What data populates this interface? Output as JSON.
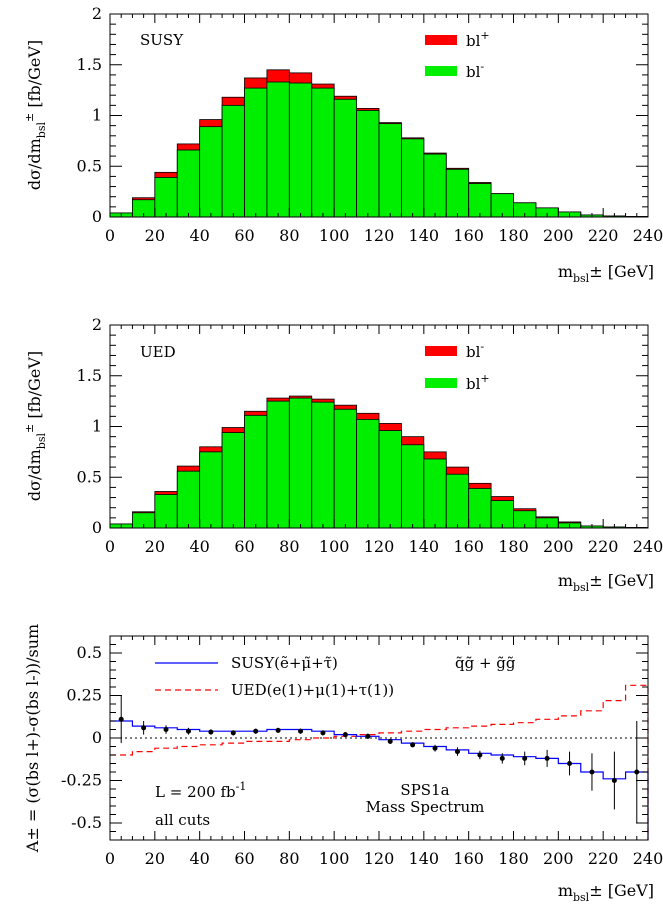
{
  "chart_data": [
    {
      "type": "bar",
      "subtype": "stacked-histogram",
      "panel_label": "SUSY",
      "x_bin_edges": [
        0,
        10,
        20,
        30,
        40,
        50,
        60,
        70,
        80,
        90,
        100,
        110,
        120,
        130,
        140,
        150,
        160,
        170,
        180,
        190,
        200,
        210,
        220,
        230,
        240
      ],
      "xlim": [
        0,
        240
      ],
      "ylim": [
        0,
        2
      ],
      "x_ticks": [
        "0",
        "20",
        "40",
        "60",
        "80",
        "100",
        "120",
        "140",
        "160",
        "180",
        "200",
        "220",
        "240"
      ],
      "y_ticks": [
        "0",
        "0.5",
        "1",
        "1.5",
        "2"
      ],
      "ylabel_main": "dσ/dm",
      "ylabel_sub": "bsl",
      "ylabel_sup": "±",
      "ylabel_unit": " [fb/GeV]",
      "xlabel_main": "m",
      "xlabel_sub": "bsl",
      "xlabel_rest": "± [GeV]",
      "series": [
        {
          "name_main": "bl",
          "name_sup": "+",
          "color": "#ff0000",
          "values": [
            0.04,
            0.19,
            0.44,
            0.72,
            0.96,
            1.18,
            1.37,
            1.45,
            1.42,
            1.31,
            1.19,
            1.07,
            0.93,
            0.78,
            0.63,
            0.48,
            0.34,
            0.23,
            0.14,
            0.09,
            0.05,
            0.02,
            0.01,
            0.005
          ]
        },
        {
          "name_main": "bl",
          "name_sup": "-",
          "color": "#00ee00",
          "values": [
            0.04,
            0.17,
            0.39,
            0.66,
            0.89,
            1.1,
            1.27,
            1.33,
            1.32,
            1.27,
            1.16,
            1.05,
            0.92,
            0.77,
            0.62,
            0.47,
            0.33,
            0.23,
            0.14,
            0.09,
            0.05,
            0.02,
            0.01,
            0.005
          ]
        }
      ]
    },
    {
      "type": "bar",
      "subtype": "stacked-histogram",
      "panel_label": "UED",
      "x_bin_edges": [
        0,
        10,
        20,
        30,
        40,
        50,
        60,
        70,
        80,
        90,
        100,
        110,
        120,
        130,
        140,
        150,
        160,
        170,
        180,
        190,
        200,
        210,
        220,
        230,
        240
      ],
      "xlim": [
        0,
        240
      ],
      "ylim": [
        0,
        2
      ],
      "x_ticks": [
        "0",
        "20",
        "40",
        "60",
        "80",
        "100",
        "120",
        "140",
        "160",
        "180",
        "200",
        "220",
        "240"
      ],
      "y_ticks": [
        "0",
        "0.5",
        "1",
        "1.5",
        "2"
      ],
      "ylabel_main": "dσ/dm",
      "ylabel_sub": "bsl",
      "ylabel_sup": "±",
      "ylabel_unit": " [fb/GeV]",
      "xlabel_main": "m",
      "xlabel_sub": "bsl",
      "xlabel_rest": "± [GeV]",
      "series": [
        {
          "name_main": "bl",
          "name_sup": "-",
          "color": "#ff0000",
          "values": [
            0.04,
            0.16,
            0.36,
            0.61,
            0.8,
            0.99,
            1.15,
            1.28,
            1.3,
            1.27,
            1.21,
            1.13,
            1.03,
            0.9,
            0.75,
            0.6,
            0.44,
            0.31,
            0.19,
            0.11,
            0.06,
            0.02,
            0.01,
            0.005
          ]
        },
        {
          "name_main": "bl",
          "name_sup": "+",
          "color": "#00ee00",
          "values": [
            0.04,
            0.15,
            0.33,
            0.56,
            0.75,
            0.94,
            1.11,
            1.25,
            1.28,
            1.24,
            1.17,
            1.07,
            0.96,
            0.82,
            0.68,
            0.53,
            0.39,
            0.27,
            0.17,
            0.1,
            0.05,
            0.02,
            0.01,
            0.005
          ]
        }
      ]
    },
    {
      "type": "line",
      "subtype": "step-with-errorbars",
      "x_bin_edges": [
        0,
        10,
        20,
        30,
        40,
        50,
        60,
        70,
        80,
        90,
        100,
        110,
        120,
        130,
        140,
        150,
        160,
        170,
        180,
        190,
        200,
        210,
        220,
        230,
        240
      ],
      "xlim": [
        0,
        240
      ],
      "ylim": [
        -0.6,
        0.6
      ],
      "x_ticks": [
        "0",
        "20",
        "40",
        "60",
        "80",
        "100",
        "120",
        "140",
        "160",
        "180",
        "200",
        "220",
        "240"
      ],
      "y_ticks": [
        "-0.5",
        "-0.25",
        "0",
        "0.25",
        "0.5"
      ],
      "ylabel": "A± = (σ(bs l+)-σ(bs l-))/sum",
      "xlabel_main": "m",
      "xlabel_sub": "bsl",
      "xlabel_rest": "± [GeV]",
      "zero_line": "dotted",
      "annotations": {
        "process": "q̃g̃ + g̃g̃",
        "lumi_main": "L = 200 fb",
        "lumi_sup": "-1",
        "cuts": "all cuts",
        "spectrum_line1": "SPS1a",
        "spectrum_line2": "Mass Spectrum"
      },
      "series": [
        {
          "name": "SUSY(ẽ+μ̃+τ̃)",
          "color": "#0000ff",
          "style": "solid",
          "values": [
            0.1,
            0.07,
            0.06,
            0.05,
            0.04,
            0.04,
            0.04,
            0.05,
            0.05,
            0.04,
            0.02,
            0.01,
            -0.01,
            -0.03,
            -0.05,
            -0.07,
            -0.09,
            -0.1,
            -0.11,
            -0.12,
            -0.15,
            -0.2,
            -0.24,
            -0.2
          ]
        },
        {
          "name": "UED(e(1)+μ(1)+τ(1))",
          "color": "#ff0000",
          "style": "dashed",
          "values": [
            -0.1,
            -0.08,
            -0.06,
            -0.05,
            -0.04,
            -0.03,
            -0.02,
            -0.02,
            -0.01,
            0.0,
            0.01,
            0.02,
            0.03,
            0.04,
            0.05,
            0.06,
            0.07,
            0.08,
            0.09,
            0.11,
            0.13,
            0.16,
            0.22,
            0.31
          ]
        },
        {
          "name": "data",
          "color": "#000000",
          "style": "points",
          "x": [
            5,
            15,
            25,
            35,
            45,
            55,
            65,
            75,
            85,
            95,
            105,
            115,
            125,
            135,
            145,
            155,
            165,
            175,
            185,
            195,
            205,
            215,
            225,
            235
          ],
          "values": [
            0.11,
            0.06,
            0.05,
            0.04,
            0.035,
            0.03,
            0.04,
            0.045,
            0.04,
            0.03,
            0.02,
            0.01,
            -0.02,
            -0.04,
            -0.06,
            -0.08,
            -0.1,
            -0.12,
            -0.12,
            -0.12,
            -0.15,
            -0.2,
            -0.25,
            -0.2
          ],
          "errors": [
            0.14,
            0.04,
            0.025,
            0.02,
            0.015,
            0.015,
            0.015,
            0.015,
            0.015,
            0.015,
            0.015,
            0.015,
            0.015,
            0.015,
            0.02,
            0.025,
            0.025,
            0.03,
            0.04,
            0.05,
            0.07,
            0.11,
            0.17,
            0.3
          ]
        }
      ]
    }
  ]
}
